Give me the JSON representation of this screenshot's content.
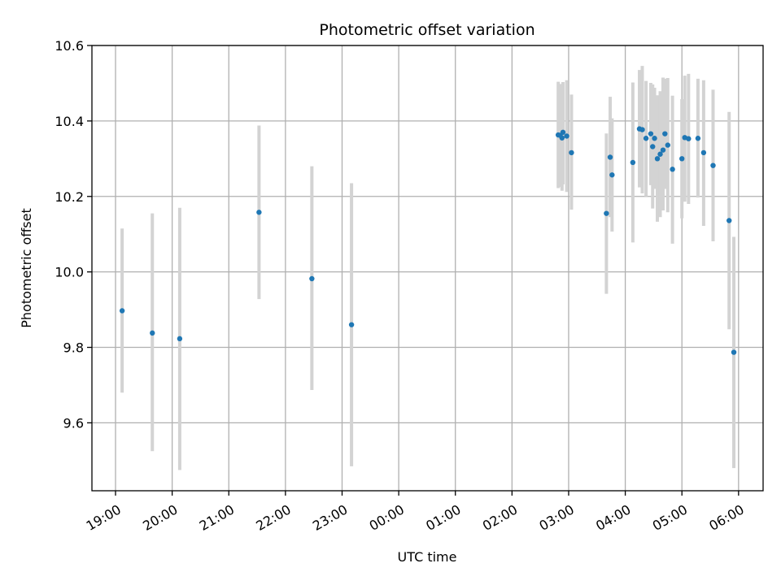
{
  "chart_data": {
    "type": "scatter",
    "title": "Photometric offset variation",
    "xlabel": "UTC time",
    "ylabel": "Photometric offset",
    "ylim": [
      9.42,
      10.6
    ],
    "xlim": [
      "18:35",
      "06:26"
    ],
    "grid": true,
    "x_ticks": [
      "19:00",
      "20:00",
      "21:00",
      "22:00",
      "23:00",
      "00:00",
      "01:00",
      "02:00",
      "03:00",
      "04:00",
      "05:00",
      "06:00"
    ],
    "y_ticks": [
      "9.6",
      "9.8",
      "10.0",
      "10.2",
      "10.4",
      "10.6"
    ],
    "marker_color": "#1f77b4",
    "errorbar_color": "#d3d3d3",
    "points": [
      {
        "t": "19:07",
        "y": 9.897,
        "lo": 9.68,
        "hi": 10.115
      },
      {
        "t": "19:39",
        "y": 9.838,
        "lo": 9.525,
        "hi": 10.155
      },
      {
        "t": "20:08",
        "y": 9.823,
        "lo": 9.475,
        "hi": 10.17
      },
      {
        "t": "21:32",
        "y": 10.158,
        "lo": 9.928,
        "hi": 10.388
      },
      {
        "t": "22:28",
        "y": 9.982,
        "lo": 9.687,
        "hi": 10.28
      },
      {
        "t": "23:10",
        "y": 9.86,
        "lo": 9.485,
        "hi": 10.235
      },
      {
        "t": "02:49",
        "y": 10.363,
        "lo": 10.222,
        "hi": 10.504
      },
      {
        "t": "02:51",
        "y": 10.362,
        "lo": 10.225,
        "hi": 10.498
      },
      {
        "t": "02:53",
        "y": 10.355,
        "lo": 10.215,
        "hi": 10.495
      },
      {
        "t": "02:54",
        "y": 10.37,
        "lo": 10.232,
        "hi": 10.503
      },
      {
        "t": "02:58",
        "y": 10.36,
        "lo": 10.212,
        "hi": 10.508
      },
      {
        "t": "03:03",
        "y": 10.316,
        "lo": 10.165,
        "hi": 10.47
      },
      {
        "t": "03:40",
        "y": 10.155,
        "lo": 9.942,
        "hi": 10.367
      },
      {
        "t": "03:44",
        "y": 10.304,
        "lo": 10.145,
        "hi": 10.464
      },
      {
        "t": "03:46",
        "y": 10.257,
        "lo": 10.107,
        "hi": 10.407
      },
      {
        "t": "04:08",
        "y": 10.29,
        "lo": 10.078,
        "hi": 10.502
      },
      {
        "t": "04:15",
        "y": 10.379,
        "lo": 10.224,
        "hi": 10.535
      },
      {
        "t": "04:18",
        "y": 10.377,
        "lo": 10.208,
        "hi": 10.546
      },
      {
        "t": "04:22",
        "y": 10.354,
        "lo": 10.2,
        "hi": 10.506
      },
      {
        "t": "04:27",
        "y": 10.366,
        "lo": 10.23,
        "hi": 10.501
      },
      {
        "t": "04:29",
        "y": 10.332,
        "lo": 10.168,
        "hi": 10.497
      },
      {
        "t": "04:31",
        "y": 10.354,
        "lo": 10.22,
        "hi": 10.488
      },
      {
        "t": "04:34",
        "y": 10.3,
        "lo": 10.133,
        "hi": 10.468
      },
      {
        "t": "04:37",
        "y": 10.312,
        "lo": 10.145,
        "hi": 10.479
      },
      {
        "t": "04:40",
        "y": 10.323,
        "lo": 10.163,
        "hi": 10.515
      },
      {
        "t": "04:42",
        "y": 10.366,
        "lo": 10.22,
        "hi": 10.512
      },
      {
        "t": "04:45",
        "y": 10.336,
        "lo": 10.158,
        "hi": 10.514
      },
      {
        "t": "04:50",
        "y": 10.272,
        "lo": 10.075,
        "hi": 10.467
      },
      {
        "t": "05:00",
        "y": 10.3,
        "lo": 10.142,
        "hi": 10.458
      },
      {
        "t": "05:03",
        "y": 10.356,
        "lo": 10.186,
        "hi": 10.52
      },
      {
        "t": "05:07",
        "y": 10.353,
        "lo": 10.18,
        "hi": 10.525
      },
      {
        "t": "05:17",
        "y": 10.354,
        "lo": 10.197,
        "hi": 10.512
      },
      {
        "t": "05:23",
        "y": 10.316,
        "lo": 10.122,
        "hi": 10.508
      },
      {
        "t": "05:33",
        "y": 10.282,
        "lo": 10.081,
        "hi": 10.483
      },
      {
        "t": "05:50",
        "y": 10.136,
        "lo": 9.848,
        "hi": 10.424
      },
      {
        "t": "05:55",
        "y": 9.787,
        "lo": 9.48,
        "hi": 10.093
      }
    ]
  }
}
